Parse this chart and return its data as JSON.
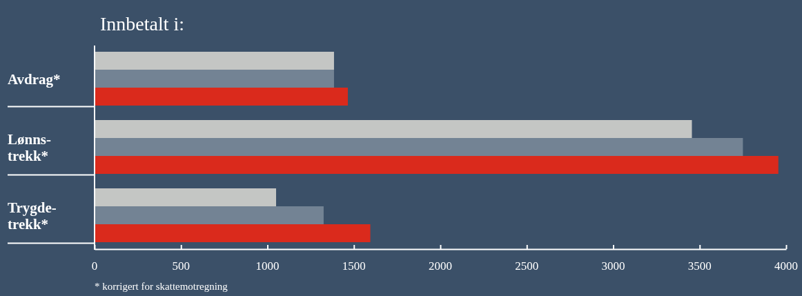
{
  "chart_data": {
    "type": "bar",
    "orientation": "horizontal",
    "title": "Innbetalt i:",
    "categories": [
      "Avdrag*",
      "Lønns-trekk*",
      "Trygde-trekk*"
    ],
    "series": [
      {
        "color": "#c4c6c4",
        "values": [
          1385,
          3455,
          1050
        ]
      },
      {
        "color": "#738394",
        "values": [
          1385,
          3750,
          1325
        ]
      },
      {
        "color": "#da2a1c",
        "values": [
          1465,
          3955,
          1595
        ]
      }
    ],
    "xlim": [
      0,
      4000
    ],
    "xticks": [
      0,
      500,
      1000,
      1500,
      2000,
      2500,
      3000,
      3500,
      4000
    ],
    "grid": false,
    "annotations": [
      "* korrigert for skattemotregning"
    ]
  }
}
